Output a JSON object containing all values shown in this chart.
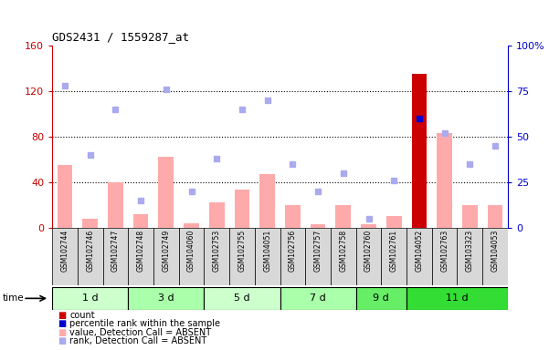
{
  "title": "GDS2431 / 1559287_at",
  "samples": [
    "GSM102744",
    "GSM102746",
    "GSM102747",
    "GSM102748",
    "GSM102749",
    "GSM104060",
    "GSM102753",
    "GSM102755",
    "GSM104051",
    "GSM102756",
    "GSM102757",
    "GSM102758",
    "GSM102760",
    "GSM102761",
    "GSM104052",
    "GSM102763",
    "GSM103323",
    "GSM104053"
  ],
  "time_groups": [
    {
      "label": "1 d",
      "start": 0,
      "end": 2,
      "color": "#ccffcc"
    },
    {
      "label": "3 d",
      "start": 3,
      "end": 5,
      "color": "#aaffaa"
    },
    {
      "label": "5 d",
      "start": 6,
      "end": 8,
      "color": "#ccffcc"
    },
    {
      "label": "7 d",
      "start": 9,
      "end": 11,
      "color": "#aaffaa"
    },
    {
      "label": "9 d",
      "start": 12,
      "end": 13,
      "color": "#66ee66"
    },
    {
      "label": "11 d",
      "start": 14,
      "end": 17,
      "color": "#33dd33"
    }
  ],
  "count_values": [
    0,
    0,
    0,
    0,
    0,
    0,
    0,
    0,
    0,
    0,
    0,
    0,
    0,
    0,
    135,
    0,
    0,
    0
  ],
  "percentile_values": [
    0,
    0,
    0,
    0,
    0,
    0,
    0,
    0,
    0,
    0,
    0,
    0,
    0,
    0,
    60,
    0,
    0,
    0
  ],
  "value_absent": [
    55,
    8,
    40,
    12,
    62,
    4,
    22,
    33,
    47,
    20,
    3,
    20,
    3,
    10,
    0,
    83,
    20,
    20
  ],
  "rank_absent": [
    78,
    40,
    65,
    15,
    76,
    20,
    38,
    65,
    70,
    35,
    20,
    30,
    5,
    26,
    0,
    52,
    35,
    45
  ],
  "ylim_left": [
    0,
    160
  ],
  "ylim_right": [
    0,
    100
  ],
  "yticks_left": [
    0,
    40,
    80,
    120,
    160
  ],
  "yticks_right": [
    0,
    25,
    50,
    75,
    100
  ],
  "ytick_labels_left": [
    "0",
    "40",
    "80",
    "120",
    "160"
  ],
  "ytick_labels_right": [
    "0",
    "25",
    "50",
    "75",
    "100%"
  ],
  "count_color": "#cc0000",
  "percentile_color": "#0000cc",
  "value_absent_color": "#ffaaaa",
  "rank_absent_color": "#aaaaee",
  "bg_color": "#d8d8d8",
  "plot_bg": "#ffffff",
  "left_axis_color": "#cc0000",
  "right_axis_color": "#0000cc",
  "legend_items": [
    {
      "color": "#cc0000",
      "label": "count"
    },
    {
      "color": "#0000cc",
      "label": "percentile rank within the sample"
    },
    {
      "color": "#ffaaaa",
      "label": "value, Detection Call = ABSENT"
    },
    {
      "color": "#aaaaee",
      "label": "rank, Detection Call = ABSENT"
    }
  ]
}
